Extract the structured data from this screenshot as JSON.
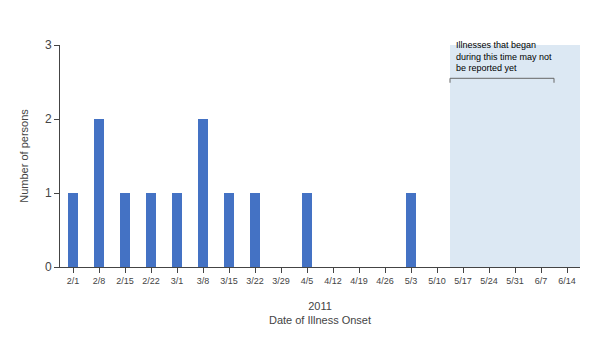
{
  "chart_data": {
    "type": "bar",
    "categories": [
      "2/1",
      "2/8",
      "2/15",
      "2/22",
      "3/1",
      "3/8",
      "3/15",
      "3/22",
      "3/29",
      "4/5",
      "4/12",
      "4/19",
      "4/26",
      "5/3",
      "5/10",
      "5/17",
      "5/24",
      "5/31",
      "6/7",
      "6/14"
    ],
    "values": [
      1,
      2,
      1,
      1,
      1,
      2,
      1,
      1,
      0,
      1,
      0,
      0,
      0,
      1,
      0,
      0,
      0,
      0,
      0,
      0
    ],
    "color": "#4472C4",
    "ylabel": "Number of persons",
    "xlabel": "2011\nDate of Illness Onset",
    "ylim": [
      0,
      3
    ],
    "yticks": [
      0,
      1,
      2,
      3
    ],
    "grid": false,
    "annotations": [
      {
        "text": "Illnesses that began\nduring this time may not\nbe reported yet",
        "x_start": "5/17",
        "x_end": "6/14",
        "y": 2.55,
        "color": "#dce8f3"
      }
    ]
  }
}
